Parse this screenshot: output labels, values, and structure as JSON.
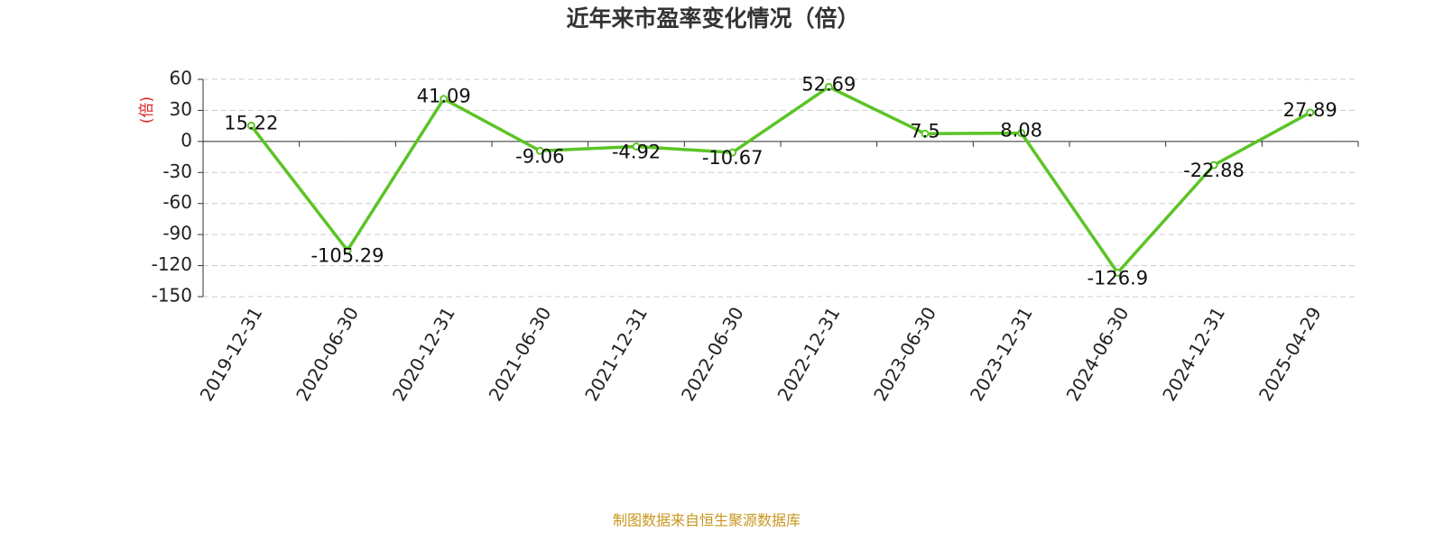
{
  "chart_data": {
    "type": "line",
    "title": "近年来市盈率变化情况（倍）",
    "y_label": "(倍)",
    "source": "制图数据来自恒生聚源数据库",
    "categories": [
      "2019-12-31",
      "2020-06-30",
      "2020-12-31",
      "2021-06-30",
      "2021-12-31",
      "2022-06-30",
      "2022-12-31",
      "2023-06-30",
      "2023-12-31",
      "2024-06-30",
      "2024-12-31",
      "2025-04-29"
    ],
    "values": [
      15.22,
      -105.29,
      41.09,
      -9.06,
      -4.92,
      -10.67,
      52.69,
      7.5,
      8.08,
      -126.9,
      -22.88,
      27.89
    ],
    "color": "#5bc425",
    "ylim": [
      -150,
      60
    ],
    "yticks": [
      60,
      30,
      0,
      -30,
      -60,
      -90,
      -120,
      -150
    ],
    "grid": true
  }
}
